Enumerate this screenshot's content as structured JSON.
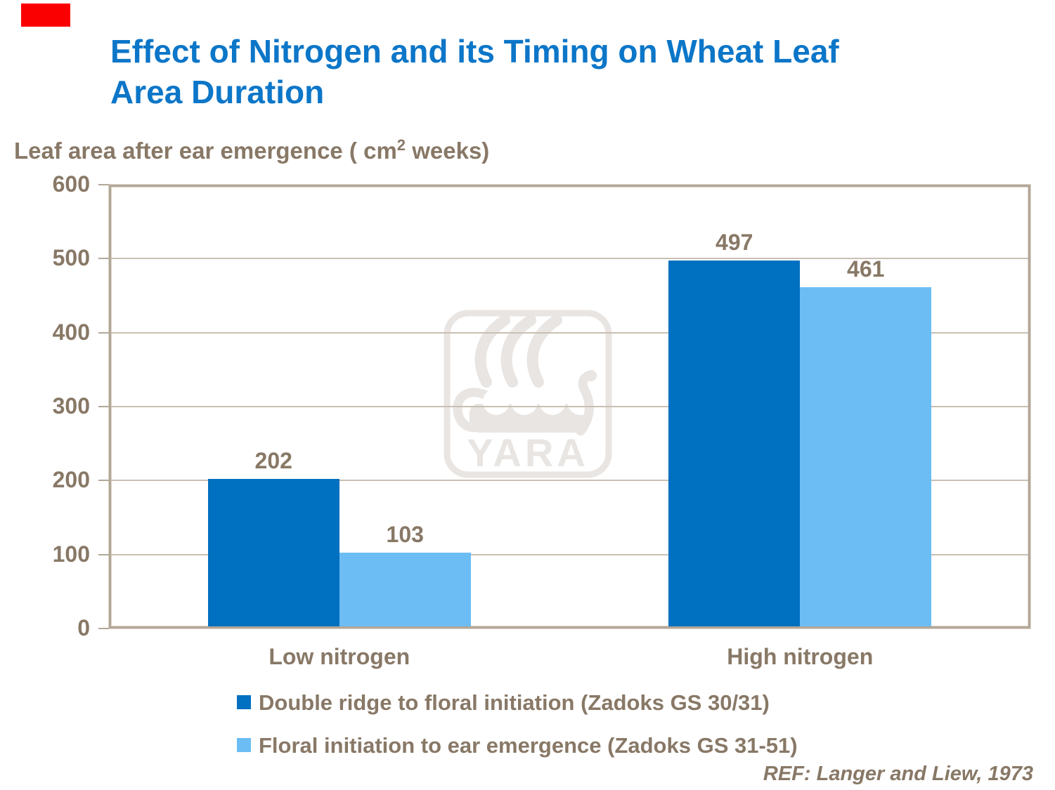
{
  "page": {
    "title": "Effect of Nitrogen and its Timing on Wheat Leaf Area Duration",
    "subtitle_prefix": "Leaf area after ear emergence ( cm",
    "subtitle_sup": "2",
    "subtitle_suffix": " weeks)",
    "reference": "REF: Langer and Liew, 1973"
  },
  "colors": {
    "title_blue": "#0C76C8",
    "series1_blue": "#0070C0",
    "series2_blue": "#6CBDF4",
    "text_brown": "#887866",
    "gridline": "#C9BFB3",
    "plot_border": "#B3A798",
    "accent_red": "#FB0000",
    "watermark_gray": "#E8E5E2"
  },
  "watermark": {
    "text": "YARA"
  },
  "chart_data": {
    "type": "bar",
    "title": "Effect of Nitrogen and its Timing on Wheat Leaf Area Duration",
    "ylabel": "Leaf area after ear emergence ( cm2 weeks)",
    "xlabel": "",
    "categories": [
      "Low nitrogen",
      "High nitrogen"
    ],
    "series": [
      {
        "name": "Double ridge to floral initiation (Zadoks GS 30/31)",
        "values": [
          202,
          497
        ],
        "color": "#0070C0"
      },
      {
        "name": "Floral initiation to ear emergence (Zadoks GS 31-51)",
        "values": [
          103,
          461
        ],
        "color": "#6CBDF4"
      }
    ],
    "data_labels": true,
    "ylim": [
      0,
      600
    ],
    "ytick_step": 100,
    "yticks": [
      0,
      100,
      200,
      300,
      400,
      500,
      600
    ],
    "grid": true,
    "legend_position": "bottom"
  }
}
